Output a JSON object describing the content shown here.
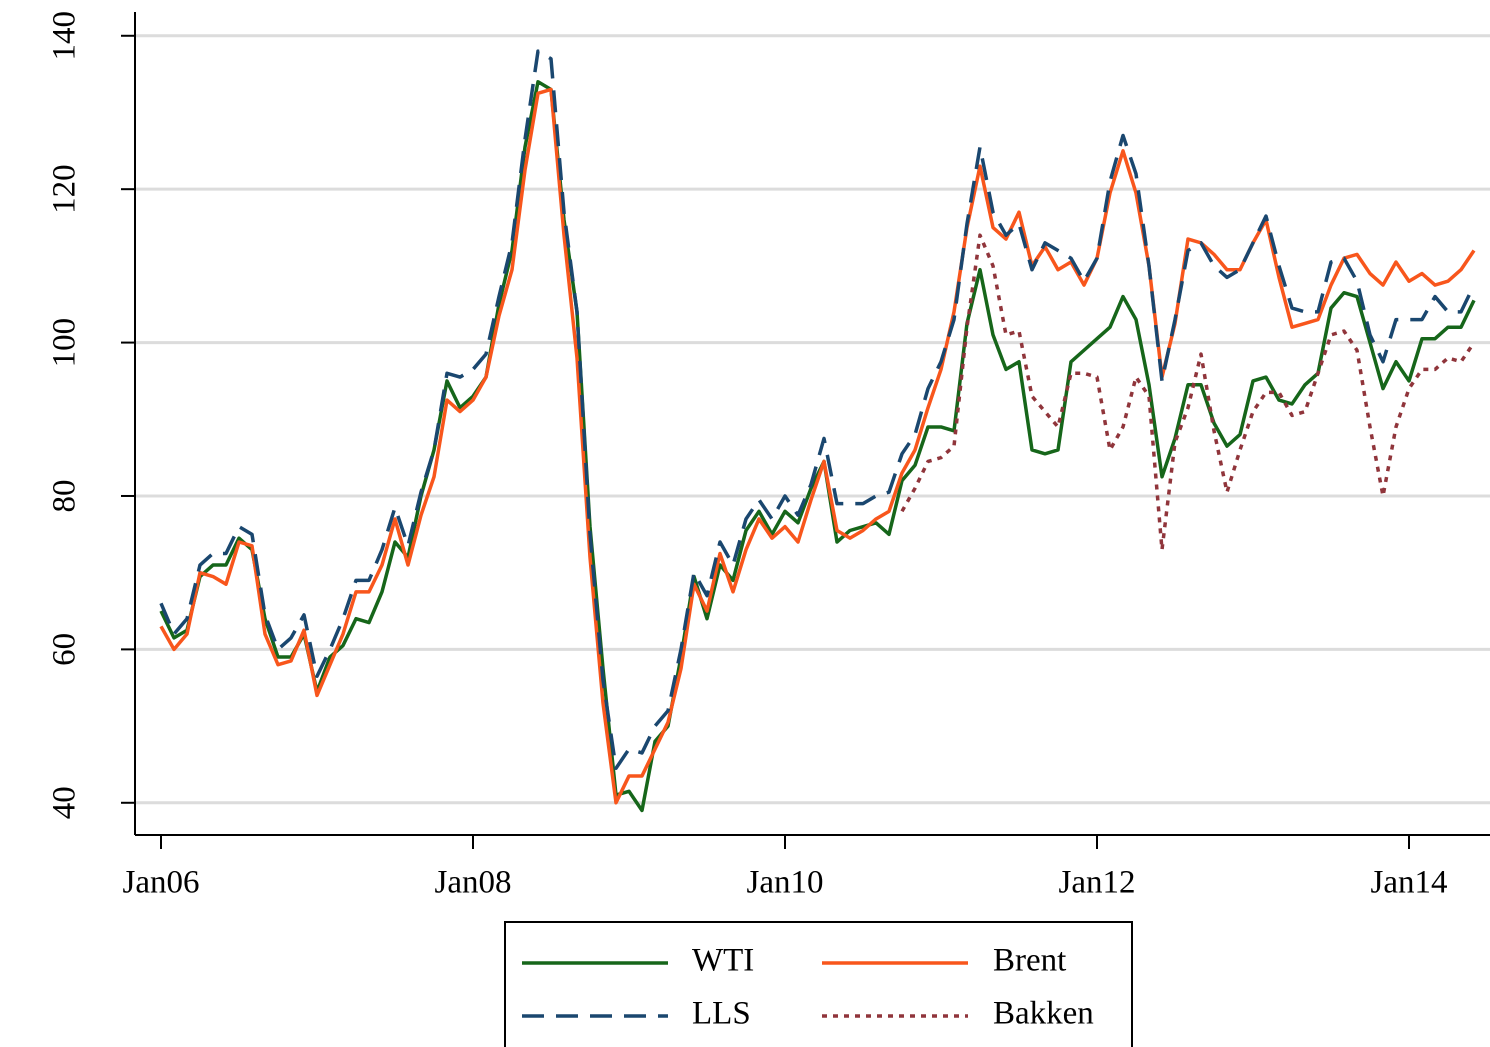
{
  "chart_data": {
    "type": "line",
    "categories": [
      "Jan06",
      null,
      null,
      null,
      null,
      null,
      null,
      null,
      null,
      null,
      null,
      null,
      null,
      null,
      null,
      null,
      null,
      null,
      null,
      null,
      null,
      null,
      null,
      null,
      "Jan08",
      null,
      null,
      null,
      null,
      null,
      null,
      null,
      null,
      null,
      null,
      null,
      null,
      null,
      null,
      null,
      null,
      null,
      null,
      null,
      null,
      null,
      null,
      null,
      "Jan10",
      null,
      null,
      null,
      null,
      null,
      null,
      null,
      null,
      null,
      null,
      null,
      null,
      null,
      null,
      null,
      null,
      null,
      null,
      null,
      null,
      null,
      null,
      null,
      "Jan12",
      null,
      null,
      null,
      null,
      null,
      null,
      null,
      null,
      null,
      null,
      null,
      null,
      null,
      null,
      null,
      null,
      null,
      null,
      null,
      null,
      null,
      null,
      null,
      "Jan14",
      null,
      null,
      null,
      null,
      null
    ],
    "series": [
      {
        "name": "WTI",
        "color": "#16661a",
        "dash": "solid",
        "values": [
          65,
          61.5,
          62.5,
          69.5,
          71,
          71,
          74.5,
          73,
          64,
          59,
          59,
          62,
          54.5,
          59,
          60.5,
          64,
          63.5,
          67.5,
          74,
          72,
          80,
          86,
          95,
          91.5,
          93,
          95.5,
          105,
          112,
          125.5,
          134,
          133,
          116,
          104,
          76,
          57.5,
          41,
          41.5,
          39,
          48,
          50,
          59,
          69.5,
          64,
          71,
          69,
          75.5,
          78,
          75,
          78,
          76.5,
          81,
          84.5,
          74,
          75.5,
          76,
          76.5,
          75,
          82,
          84,
          89,
          89,
          88.5,
          102.5,
          109.5,
          101,
          96.5,
          97.5,
          86,
          85.5,
          86,
          97.5,
          99,
          100.5,
          102,
          106,
          103,
          94.5,
          82.5,
          87.5,
          94.5,
          94.5,
          89.5,
          86.5,
          88,
          95,
          95.5,
          92.5,
          92,
          94.5,
          96,
          104.5,
          106.5,
          106,
          100,
          94,
          97.5,
          95,
          100.5,
          100.5,
          102,
          102,
          105.5
        ]
      },
      {
        "name": "Brent",
        "color": "#f8561c",
        "dash": "solid",
        "values": [
          63,
          60,
          62,
          70,
          69.5,
          68.5,
          74,
          73.5,
          62,
          58,
          58.5,
          62.5,
          54,
          58,
          62,
          67.5,
          67.5,
          71,
          77,
          71,
          77.5,
          82.5,
          92.5,
          91,
          92.5,
          95.5,
          103.5,
          109.5,
          122.5,
          132.5,
          133,
          114,
          98,
          72,
          53,
          40,
          43.5,
          43.5,
          47,
          50.5,
          57.5,
          68.5,
          65,
          72.5,
          67.5,
          73,
          77,
          74.5,
          76,
          74,
          79.5,
          84.5,
          75.5,
          74.5,
          75.5,
          77,
          78,
          83,
          86,
          91.5,
          96.5,
          104,
          115,
          123,
          115,
          113.5,
          117,
          110,
          112.5,
          109.5,
          110.5,
          107.5,
          111,
          119.5,
          125,
          119.5,
          110,
          95.5,
          102.5,
          113.5,
          113,
          111.5,
          109.5,
          109.5,
          113,
          116,
          108.5,
          102,
          102.5,
          103,
          107.5,
          111,
          111.5,
          109,
          107.5,
          110.5,
          108,
          109,
          107.5,
          108,
          109.5,
          112
        ]
      },
      {
        "name": "LLS",
        "color": "#1a476f",
        "dash": "dash",
        "values": [
          66,
          62,
          64,
          71,
          72.5,
          72.5,
          76,
          75,
          64.5,
          60,
          61.5,
          64.5,
          56.5,
          60,
          64,
          69,
          69,
          73,
          78.5,
          73.5,
          80.5,
          86,
          96,
          95.5,
          96.5,
          98.5,
          106,
          113,
          126.5,
          138,
          137,
          117,
          104,
          75,
          56,
          44.5,
          47,
          46.5,
          50,
          52,
          60,
          70,
          67,
          74,
          71,
          77,
          79.5,
          77,
          80,
          77.5,
          81.5,
          87.5,
          79,
          79,
          79,
          80,
          80.5,
          85.5,
          88,
          94,
          97.5,
          103,
          115.5,
          125.5,
          117,
          114,
          115.5,
          109.5,
          113,
          112,
          111,
          108,
          111,
          121,
          127,
          122,
          110,
          95,
          103,
          112,
          113,
          110,
          108.5,
          109.5,
          113,
          116.5,
          110,
          104.5,
          104,
          104,
          110.5,
          111,
          108,
          101,
          97.5,
          103,
          103,
          103,
          106,
          104,
          104,
          107.5
        ]
      },
      {
        "name": "Bakken",
        "color": "#90353b",
        "dash": "dot",
        "values": [
          null,
          null,
          null,
          null,
          null,
          null,
          null,
          null,
          null,
          null,
          null,
          null,
          null,
          null,
          null,
          null,
          null,
          null,
          null,
          null,
          null,
          null,
          null,
          null,
          null,
          null,
          null,
          null,
          null,
          null,
          null,
          null,
          null,
          null,
          null,
          null,
          null,
          null,
          null,
          null,
          null,
          null,
          null,
          null,
          null,
          null,
          null,
          null,
          null,
          null,
          null,
          null,
          null,
          null,
          null,
          null,
          null,
          78,
          81,
          84.5,
          85,
          86.5,
          102,
          114,
          110,
          101,
          101.5,
          93,
          91,
          89,
          96,
          96,
          95.5,
          86,
          89,
          95.5,
          93,
          73,
          87,
          91.5,
          98.5,
          88.5,
          80.5,
          86,
          91,
          93.5,
          93.5,
          90.5,
          91,
          96,
          101,
          101.5,
          99,
          89,
          80,
          89,
          94,
          96.5,
          96.5,
          98,
          97.5,
          100
        ]
      }
    ],
    "ylim": [
      35.8,
      143.1
    ],
    "yticks": [
      40,
      60,
      80,
      100,
      120,
      140
    ],
    "grid": true
  }
}
